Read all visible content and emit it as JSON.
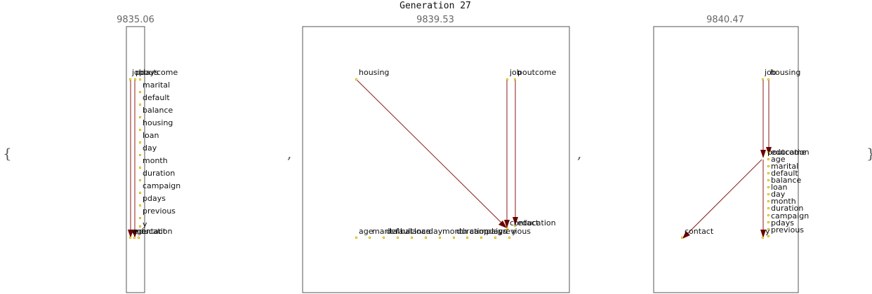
{
  "title": "Generation 27",
  "brace_open": "{",
  "brace_close": "}",
  "separator": ",",
  "colors": {
    "edge": "#8b1a1a",
    "arrowhead": "#6b0000",
    "node": "#d8b400",
    "frame": "#555555"
  },
  "graphs": [
    {
      "score": "9835.06",
      "nodes": [
        {
          "label": "job"
        },
        {
          "label": "pdays"
        },
        {
          "label": "poutcome"
        },
        {
          "label": "marital"
        },
        {
          "label": "default"
        },
        {
          "label": "balance"
        },
        {
          "label": "housing"
        },
        {
          "label": "loan"
        },
        {
          "label": "day"
        },
        {
          "label": "month"
        },
        {
          "label": "duration"
        },
        {
          "label": "campaign"
        },
        {
          "label": "pdays"
        },
        {
          "label": "previous"
        },
        {
          "label": "y"
        },
        {
          "label": "age"
        },
        {
          "label": "education"
        },
        {
          "label": "contact"
        }
      ]
    },
    {
      "score": "9839.53",
      "nodes": [
        {
          "label": "housing"
        },
        {
          "label": "poutcome"
        },
        {
          "label": "job"
        },
        {
          "label": "contact"
        },
        {
          "label": "education"
        },
        {
          "label": "age"
        },
        {
          "label": "marital"
        },
        {
          "label": "default"
        },
        {
          "label": "balance"
        },
        {
          "label": "loan"
        },
        {
          "label": "day"
        },
        {
          "label": "month"
        },
        {
          "label": "duration"
        },
        {
          "label": "campaign"
        },
        {
          "label": "pdays"
        },
        {
          "label": "previous"
        },
        {
          "label": "y"
        }
      ]
    },
    {
      "score": "9840.47",
      "nodes": [
        {
          "label": "job"
        },
        {
          "label": "housing"
        },
        {
          "label": "poutcome"
        },
        {
          "label": "education"
        },
        {
          "label": "age"
        },
        {
          "label": "marital"
        },
        {
          "label": "default"
        },
        {
          "label": "balance"
        },
        {
          "label": "loan"
        },
        {
          "label": "day"
        },
        {
          "label": "month"
        },
        {
          "label": "duration"
        },
        {
          "label": "campaign"
        },
        {
          "label": "pdays"
        },
        {
          "label": "previous"
        },
        {
          "label": "contact"
        },
        {
          "label": "y"
        }
      ]
    }
  ]
}
